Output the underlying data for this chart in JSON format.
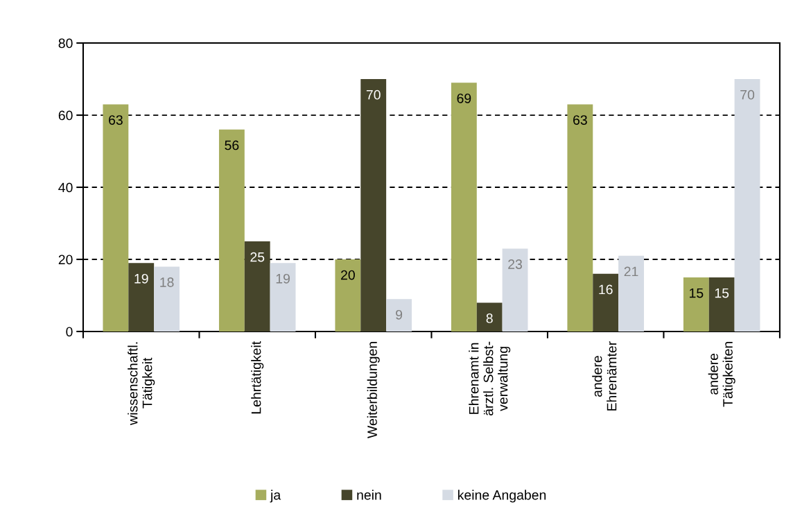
{
  "chart_data": {
    "type": "bar",
    "categories": [
      "wissenschaftl.\nTätigkeit",
      "Lehrtätigkeit",
      "Weiterbildungen",
      "Ehrenamt in\närztl. Selbst-\nverwaltung",
      "andere\nEhrenämter",
      "andere\nTätigkeiten"
    ],
    "series": [
      {
        "name": "ja",
        "color": "#a6ad5e",
        "values": [
          63,
          56,
          20,
          69,
          63,
          15
        ]
      },
      {
        "name": "nein",
        "color": "#46452b",
        "values": [
          19,
          25,
          70,
          8,
          16,
          15
        ]
      },
      {
        "name": "keine Angaben",
        "color": "#d5dbe4",
        "values": [
          18,
          19,
          9,
          23,
          21,
          70
        ]
      }
    ],
    "ylim": [
      0,
      80
    ],
    "yticks": [
      0,
      20,
      40,
      60,
      80
    ],
    "grid": "y",
    "legend": "bottom",
    "data_labels": true
  }
}
